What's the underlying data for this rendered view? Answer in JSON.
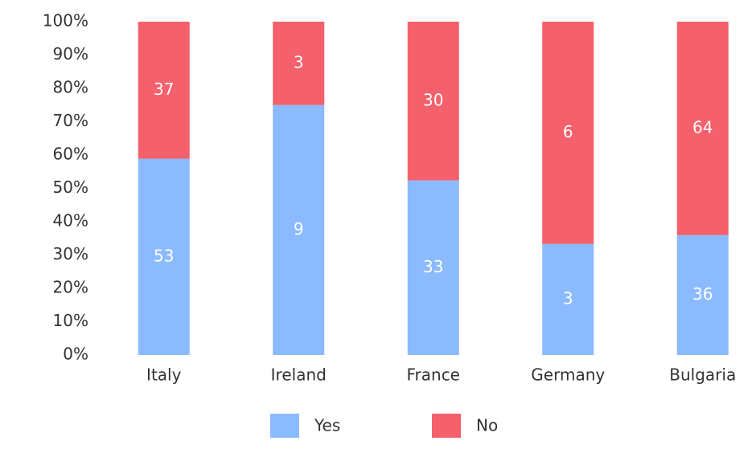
{
  "chart_data": {
    "type": "bar",
    "stacking": "percent",
    "categories": [
      "Italy",
      "Ireland",
      "France",
      "Germany",
      "Bulgaria"
    ],
    "series": [
      {
        "name": "Yes",
        "color": "#8bbafe",
        "values": [
          53,
          9,
          33,
          3,
          36
        ]
      },
      {
        "name": "No",
        "color": "#f4606b",
        "values": [
          37,
          3,
          30,
          6,
          64
        ]
      }
    ],
    "ylim": [
      0,
      100
    ],
    "yticks": [
      {
        "value": 0,
        "label": "0%"
      },
      {
        "value": 10,
        "label": "10%"
      },
      {
        "value": 20,
        "label": "20%"
      },
      {
        "value": 30,
        "label": "30%"
      },
      {
        "value": 40,
        "label": "40%"
      },
      {
        "value": 50,
        "label": "50%"
      },
      {
        "value": 60,
        "label": "60%"
      },
      {
        "value": 70,
        "label": "70%"
      },
      {
        "value": 80,
        "label": "80%"
      },
      {
        "value": 90,
        "label": "90%"
      },
      {
        "value": 100,
        "label": "100%"
      }
    ],
    "grid": false,
    "legend": "bottom"
  }
}
